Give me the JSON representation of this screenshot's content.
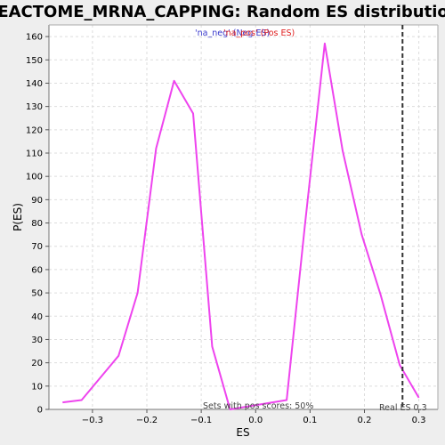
{
  "chart_data": {
    "type": "line",
    "title": "REACTOME_MRNA_CAPPING: Random ES distribution",
    "xlabel": "ES",
    "ylabel": "P(ES)",
    "xlim": [
      -0.38,
      0.335
    ],
    "ylim": [
      0,
      165
    ],
    "grid": true,
    "x_ticks": [
      "-0.3",
      "-0.2",
      "-0.1",
      "0.0",
      "0.1",
      "0.2",
      "0.3"
    ],
    "y_ticks": [
      "0",
      "10",
      "20",
      "30",
      "40",
      "50",
      "60",
      "70",
      "80",
      "90",
      "100",
      "110",
      "120",
      "130",
      "140",
      "150",
      "160"
    ],
    "legend": {
      "position": "top-center",
      "neg_label": "'na_neg' (Neg ES)",
      "pos_label": "'na_pos' (Pos ES)",
      "neg_color": "#3a3acd",
      "pos_color": "#e02020"
    },
    "series": [
      {
        "color": "#ee44ee",
        "x": [
          -0.355,
          -0.32,
          -0.252,
          -0.217,
          -0.183,
          -0.15,
          -0.115,
          -0.08,
          -0.047,
          0.057,
          0.09,
          0.127,
          0.16,
          0.195,
          0.23,
          0.265,
          0.3
        ],
        "y": [
          3,
          4,
          23,
          50,
          112,
          141,
          127,
          27,
          0,
          4,
          78,
          157,
          111,
          75,
          49,
          19,
          5
        ]
      }
    ],
    "real_es": {
      "x": 0.27,
      "label": "Real ES 0.3",
      "color": "#333333"
    },
    "annotation": "Sets with pos scores: 50%",
    "colors": {
      "background": "#eeeeee",
      "plot_background": "#ffffff",
      "line": "#ee44ee",
      "grid": "#dddddd"
    }
  }
}
